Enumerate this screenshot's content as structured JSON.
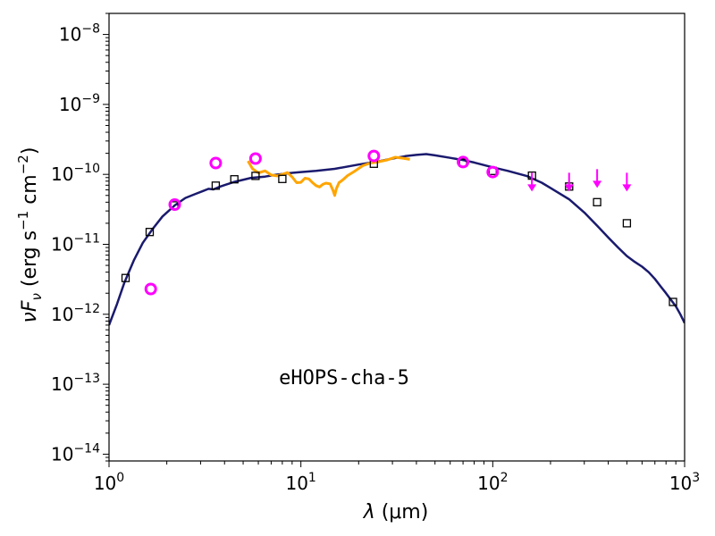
{
  "chart_data": {
    "type": "scatter",
    "title": "",
    "xlabel": {
      "symbol": "λ",
      "unit": " (μm)"
    },
    "ylabel": {
      "symbol": "νF",
      "sub": "ν",
      "unit_lead": " (erg s",
      "exp1": "−1",
      "unit_mid": " cm",
      "exp2": "−2",
      "unit_end": ")"
    },
    "xscale": "log",
    "yscale": "log",
    "xlim": [
      1,
      1000
    ],
    "ylim": [
      8e-15,
      2e-08
    ],
    "xticks": [
      {
        "value": 1,
        "base": "10",
        "exp": "0"
      },
      {
        "value": 10,
        "base": "10",
        "exp": "1"
      },
      {
        "value": 100,
        "base": "10",
        "exp": "2"
      },
      {
        "value": 1000,
        "base": "10",
        "exp": "3"
      }
    ],
    "yticks": [
      {
        "value": 1e-14,
        "base": "10",
        "exp": "−14"
      },
      {
        "value": 1e-13,
        "base": "10",
        "exp": "−13"
      },
      {
        "value": 1e-12,
        "base": "10",
        "exp": "−12"
      },
      {
        "value": 1e-11,
        "base": "10",
        "exp": "−11"
      },
      {
        "value": 1e-10,
        "base": "10",
        "exp": "−10"
      },
      {
        "value": 1e-09,
        "base": "10",
        "exp": "−9"
      },
      {
        "value": 1e-08,
        "base": "10",
        "exp": "−8"
      }
    ],
    "annotation": "eHOPS-cha-5",
    "colors": {
      "model": "#1a1a6e",
      "spectrum": "#ffa500",
      "circles": "#ff00ff",
      "squares": "#000000"
    },
    "series": [
      {
        "kind": "model-line",
        "points": [
          [
            1.0,
            7e-13
          ],
          [
            1.1,
            1.4e-12
          ],
          [
            1.2,
            2.8e-12
          ],
          [
            1.35,
            6e-12
          ],
          [
            1.5,
            1.05e-11
          ],
          [
            1.7,
            1.7e-11
          ],
          [
            1.9,
            2.5e-11
          ],
          [
            2.2,
            3.6e-11
          ],
          [
            2.5,
            4.6e-11
          ],
          [
            2.8,
            5.2e-11
          ],
          [
            3.1,
            5.8e-11
          ],
          [
            3.3,
            6.2e-11
          ],
          [
            3.5,
            6.1e-11
          ],
          [
            3.8,
            6.7e-11
          ],
          [
            4.5,
            7.8e-11
          ],
          [
            5.5,
            8.9e-11
          ],
          [
            6.5,
            9.3e-11
          ],
          [
            7.5,
            9.9e-11
          ],
          [
            9.0,
            1.05e-10
          ],
          [
            10.0,
            1.08e-10
          ],
          [
            12.0,
            1.12e-10
          ],
          [
            15.0,
            1.2e-10
          ],
          [
            20.0,
            1.38e-10
          ],
          [
            25.0,
            1.52e-10
          ],
          [
            30.0,
            1.68e-10
          ],
          [
            35.0,
            1.82e-10
          ],
          [
            40.0,
            1.9e-10
          ],
          [
            45.0,
            1.95e-10
          ],
          [
            50.0,
            1.87e-10
          ],
          [
            60.0,
            1.72e-10
          ],
          [
            70.0,
            1.6e-10
          ],
          [
            80.0,
            1.48e-10
          ],
          [
            100.0,
            1.26e-10
          ],
          [
            120.0,
            1.12e-10
          ],
          [
            150.0,
            9.5e-11
          ],
          [
            180.0,
            7.6e-11
          ],
          [
            200.0,
            6.4e-11
          ],
          [
            250.0,
            4.4e-11
          ],
          [
            300.0,
            2.85e-11
          ],
          [
            350.0,
            1.85e-11
          ],
          [
            400.0,
            1.25e-11
          ],
          [
            450.0,
            9e-12
          ],
          [
            500.0,
            6.8e-12
          ],
          [
            550.0,
            5.6e-12
          ],
          [
            600.0,
            4.8e-12
          ],
          [
            650.0,
            4e-12
          ],
          [
            700.0,
            3.2e-12
          ],
          [
            750.0,
            2.5e-12
          ],
          [
            800.0,
            2e-12
          ],
          [
            850.0,
            1.6e-12
          ],
          [
            900.0,
            1.3e-12
          ],
          [
            950.0,
            1e-12
          ],
          [
            1000.0,
            7.5e-13
          ]
        ]
      },
      {
        "kind": "spectrum-line",
        "points": [
          [
            5.3,
            1.55e-10
          ],
          [
            5.6,
            1.2e-10
          ],
          [
            6.0,
            1.05e-10
          ],
          [
            6.5,
            1.12e-10
          ],
          [
            7.0,
            9.8e-11
          ],
          [
            7.5,
            9.5e-11
          ],
          [
            8.0,
            1e-10
          ],
          [
            8.5,
            1.06e-10
          ],
          [
            9.0,
            9.2e-11
          ],
          [
            9.5,
            7.6e-11
          ],
          [
            10.0,
            7.7e-11
          ],
          [
            10.5,
            8.8e-11
          ],
          [
            11.0,
            8.6e-11
          ],
          [
            11.5,
            7.6e-11
          ],
          [
            12.0,
            6.9e-11
          ],
          [
            12.5,
            6.6e-11
          ],
          [
            13.0,
            7.2e-11
          ],
          [
            13.5,
            7.5e-11
          ],
          [
            14.2,
            7.3e-11
          ],
          [
            14.7,
            5.9e-11
          ],
          [
            15.0,
            5e-11
          ],
          [
            15.3,
            6.2e-11
          ],
          [
            15.8,
            7.6e-11
          ],
          [
            16.5,
            8.3e-11
          ],
          [
            17.5,
            9.6e-11
          ],
          [
            19.0,
            1.1e-10
          ],
          [
            21.0,
            1.33e-10
          ],
          [
            23.0,
            1.45e-10
          ],
          [
            25.0,
            1.5e-10
          ],
          [
            28.0,
            1.6e-10
          ],
          [
            31.0,
            1.76e-10
          ],
          [
            34.0,
            1.7e-10
          ],
          [
            37.0,
            1.64e-10
          ]
        ]
      },
      {
        "kind": "squares",
        "points": [
          [
            1.22,
            3.3e-12
          ],
          [
            1.63,
            1.5e-11
          ],
          [
            2.19,
            3.6e-11
          ],
          [
            3.6,
            6.9e-11
          ],
          [
            4.5,
            8.5e-11
          ],
          [
            5.8,
            9.5e-11
          ],
          [
            8.0,
            8.6e-11
          ],
          [
            24.0,
            1.42e-10
          ],
          [
            70.0,
            1.47e-10
          ],
          [
            100.0,
            1.12e-10
          ],
          [
            160.0,
            9.6e-11
          ],
          [
            250.0,
            6.7e-11
          ],
          [
            350.0,
            4e-11
          ],
          [
            500.0,
            2e-11
          ],
          [
            870.0,
            1.5e-12
          ]
        ]
      },
      {
        "kind": "circles",
        "points": [
          [
            1.65,
            2.3e-12
          ],
          [
            2.2,
            3.7e-11
          ],
          [
            3.6,
            1.45e-10
          ],
          [
            5.8,
            1.68e-10
          ],
          [
            24.0,
            1.83e-10
          ],
          [
            70.0,
            1.5e-10
          ],
          [
            100.0,
            1.08e-10
          ]
        ]
      },
      {
        "kind": "upper-limits",
        "points": [
          [
            160.0,
            6.4e-11
          ],
          [
            250.0,
            6.4e-11
          ],
          [
            350.0,
            7.2e-11
          ],
          [
            500.0,
            6.4e-11
          ]
        ]
      }
    ]
  }
}
